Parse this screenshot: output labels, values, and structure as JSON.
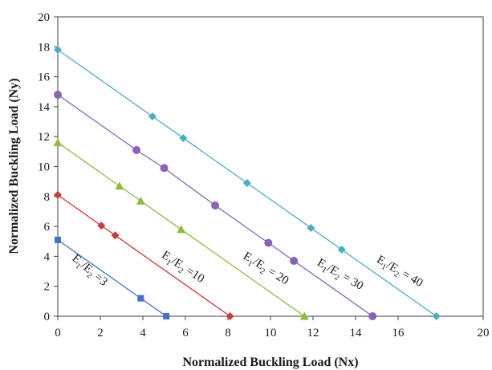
{
  "chart_data": {
    "type": "line",
    "title": "",
    "xlabel": "Normalized Buckling Load (Nx)",
    "ylabel": "Normalized Buckling Load (Ny)",
    "xlim": [
      0,
      20
    ],
    "ylim": [
      0,
      20
    ],
    "xticks": [
      "0",
      "2",
      "4",
      "6",
      "8",
      "10",
      "12",
      "14",
      "16",
      "20"
    ],
    "xtick_values": [
      0,
      2,
      4,
      6,
      8,
      10,
      12,
      14,
      16,
      20
    ],
    "yticks": [
      "0",
      "2",
      "4",
      "6",
      "8",
      "10",
      "12",
      "14",
      "16",
      "18",
      "20"
    ],
    "ytick_values": [
      0,
      2,
      4,
      6,
      8,
      10,
      12,
      14,
      16,
      18,
      20
    ],
    "grid": false,
    "legend": "none",
    "series": [
      {
        "label_base": "E",
        "label_sub1": "1",
        "label_slash": "/E",
        "label_sub2": "2",
        "label_value": " =3",
        "color": "#3f72c4",
        "marker": "square",
        "x": [
          0,
          3.9,
          5.1
        ],
        "y": [
          5.1,
          1.2,
          0
        ],
        "label_x": 1.4,
        "label_y": 2.9,
        "label_angle": 40
      },
      {
        "label_base": "E",
        "label_sub1": "1",
        "label_slash": "/E",
        "label_sub2": "2",
        "label_value": " =10",
        "color": "#cc3b3b",
        "marker": "diamond",
        "x": [
          0,
          2.05,
          2.7,
          8.1
        ],
        "y": [
          8.1,
          6.05,
          5.4,
          0
        ],
        "label_x": 5.8,
        "label_y": 3.1,
        "label_angle": 33
      },
      {
        "label_base": "E",
        "label_sub1": "1",
        "label_slash": "/E",
        "label_sub2": "2",
        "label_value": " = 20",
        "color": "#8fbc3c",
        "marker": "triangle",
        "x": [
          0,
          2.9,
          3.9,
          5.8,
          11.6
        ],
        "y": [
          11.6,
          8.7,
          7.7,
          5.8,
          0
        ],
        "label_x": 9.7,
        "label_y": 3.0,
        "label_angle": 32
      },
      {
        "label_base": "E",
        "label_sub1": "1",
        "label_slash": "/E",
        "label_sub2": "2",
        "label_value": " = 30",
        "color": "#8a63b8",
        "marker": "circle",
        "x": [
          0,
          3.7,
          5.0,
          7.4,
          9.9,
          11.1,
          14.8
        ],
        "y": [
          14.8,
          11.1,
          9.9,
          7.4,
          4.9,
          3.7,
          0
        ],
        "label_x": 13.2,
        "label_y": 2.6,
        "label_angle": 30
      },
      {
        "label_base": "E",
        "label_sub1": "1",
        "label_slash": "/E",
        "label_sub2": "2",
        "label_value": " = 40",
        "color": "#4bacc6",
        "marker": "diamond",
        "x": [
          0,
          4.45,
          5.9,
          8.9,
          11.9,
          13.35,
          17.8
        ],
        "y": [
          17.8,
          13.35,
          11.9,
          8.9,
          5.9,
          4.45,
          0
        ],
        "label_x": 16.0,
        "label_y": 2.8,
        "label_angle": 30
      }
    ]
  }
}
